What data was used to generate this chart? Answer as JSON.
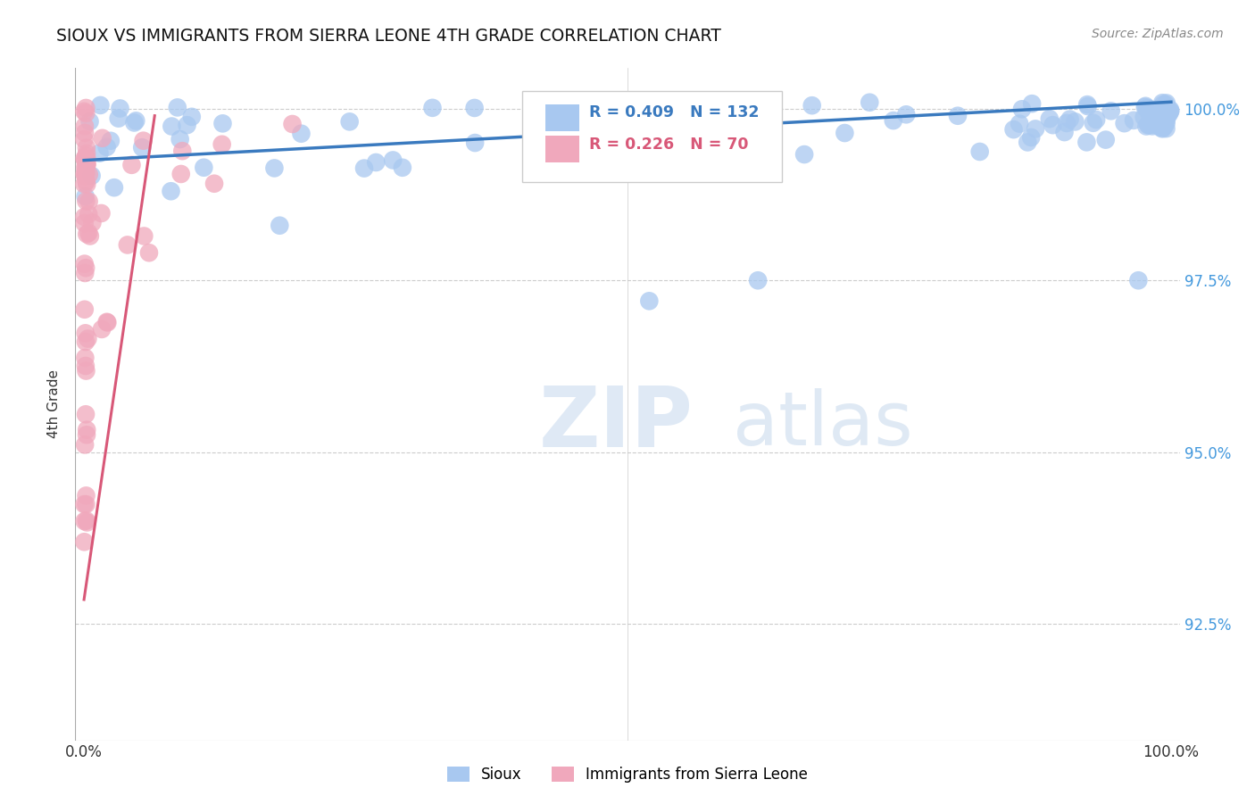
{
  "title": "SIOUX VS IMMIGRANTS FROM SIERRA LEONE 4TH GRADE CORRELATION CHART",
  "source": "Source: ZipAtlas.com",
  "ylabel": "4th Grade",
  "watermark_text": "ZIPatlas",
  "legend_blue_label": "Sioux",
  "legend_pink_label": "Immigrants from Sierra Leone",
  "legend_blue_R": "R = 0.409",
  "legend_blue_N": "N = 132",
  "legend_pink_R": "R = 0.226",
  "legend_pink_N": "N = 70",
  "blue_color": "#a8c8f0",
  "blue_line_color": "#3a7abf",
  "pink_color": "#f0a8bc",
  "pink_line_color": "#d85878",
  "grid_color": "#cccccc",
  "ytick_labels": [
    "92.5%",
    "95.0%",
    "97.5%",
    "100.0%"
  ],
  "ytick_values": [
    0.925,
    0.95,
    0.975,
    1.0
  ],
  "ylim": [
    0.908,
    1.006
  ],
  "xlim": [
    -0.008,
    1.008
  ],
  "blue_trend_x": [
    0.0,
    1.0
  ],
  "blue_trend_y": [
    0.9925,
    1.001
  ],
  "pink_trend_x": [
    0.0,
    0.065
  ],
  "pink_trend_y": [
    0.9285,
    0.999
  ]
}
